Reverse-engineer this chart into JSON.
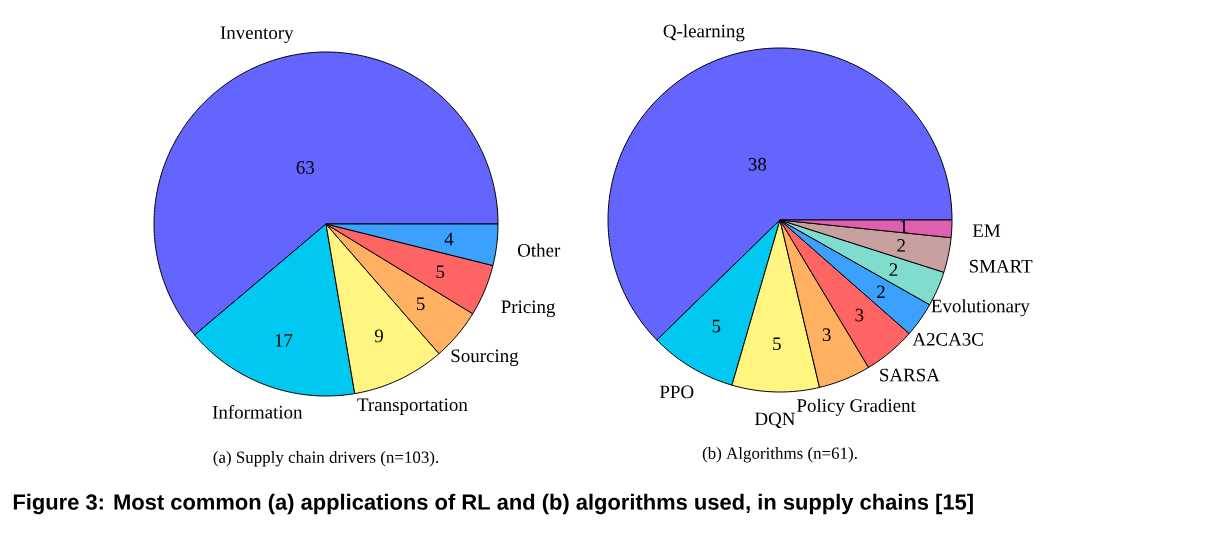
{
  "chart_data": [
    {
      "type": "pie",
      "title": "(a) Supply chain drivers (n=103).",
      "categories": [
        "Inventory",
        "Information",
        "Transportation",
        "Sourcing",
        "Pricing",
        "Other"
      ],
      "values": [
        63,
        17,
        9,
        5,
        5,
        4
      ],
      "colors": [
        "#6464ff",
        "#00c8f0",
        "#fff580",
        "#ffb060",
        "#ff6464",
        "#3ca0ff"
      ],
      "data_labels": true,
      "annotations": [
        "**Figure 3: Most common (a) applications of RL and (b) algorithms used, in supply chains [15]**"
      ]
    },
    {
      "type": "pie",
      "title": "(b) Algorithms (n=61).",
      "categories": [
        "Q-learning",
        "PPO",
        "DQN",
        "Policy Gradient",
        "SARSA",
        "A2CA3C",
        "Evolutionary",
        "SMART",
        "EM"
      ],
      "values": [
        38,
        5,
        5,
        3,
        3,
        2,
        2,
        2,
        1
      ],
      "colors": [
        "#6464ff",
        "#00c8f0",
        "#fff580",
        "#ffb060",
        "#ff6464",
        "#3ca0ff",
        "#80dccc",
        "#c8a0a0",
        "#e060b0"
      ],
      "data_labels": true
    }
  ]
}
